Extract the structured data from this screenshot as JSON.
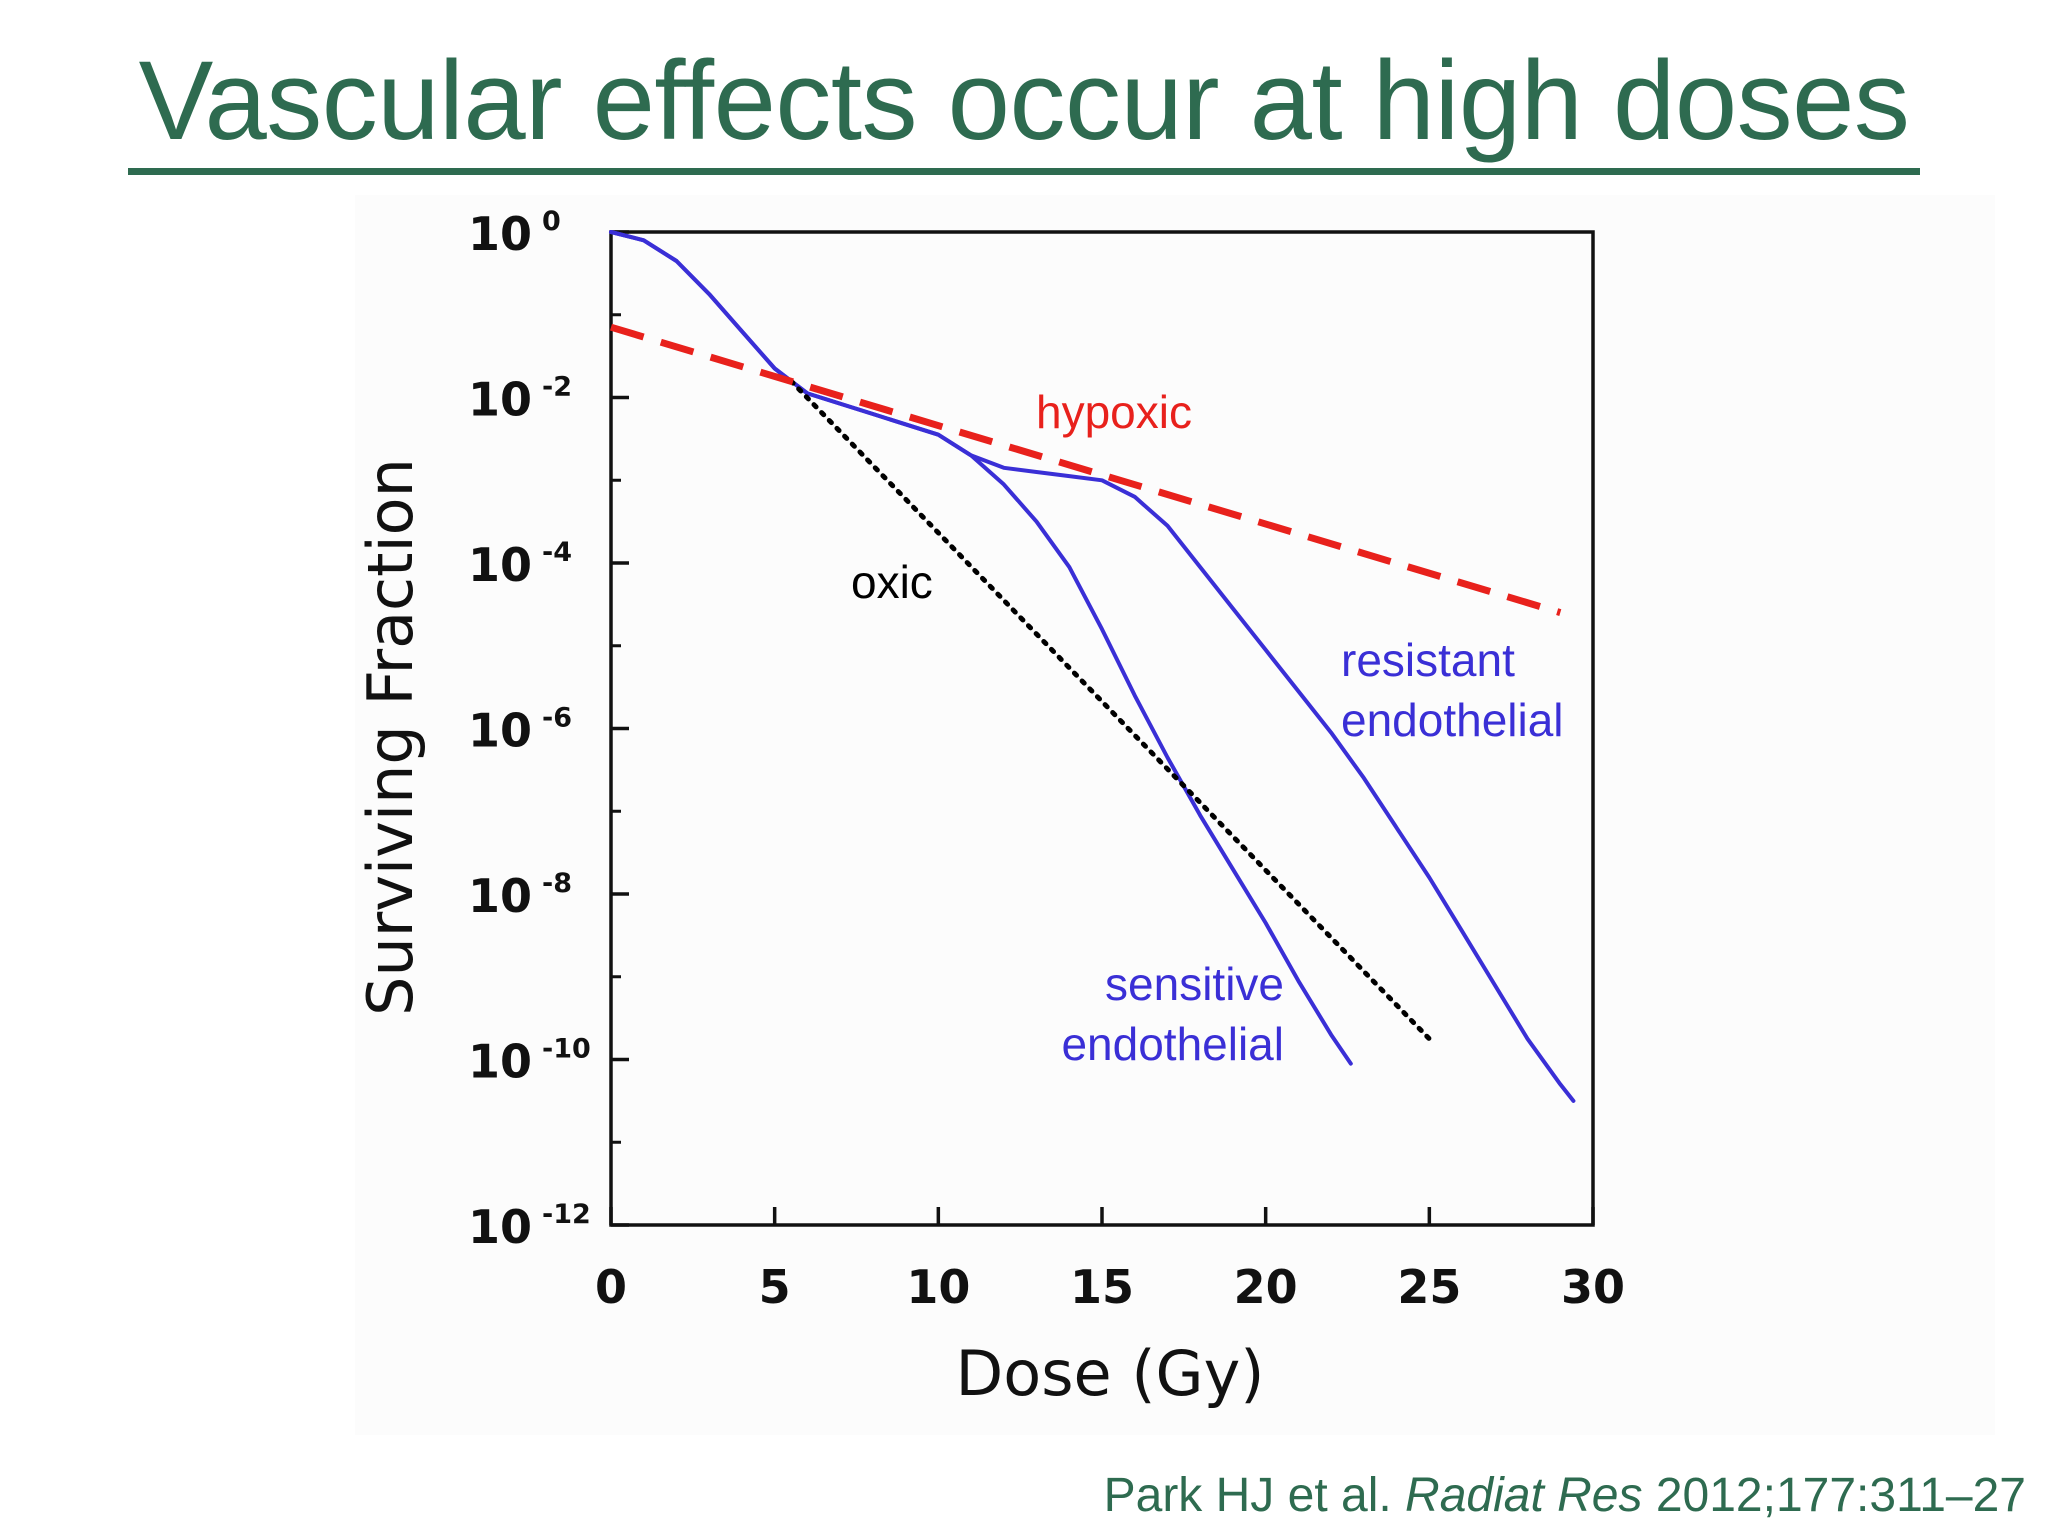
{
  "slide": {
    "title": "Vascular effects occur at high doses",
    "citation": {
      "authors": "Park HJ et al.",
      "journal": "Radiat Res",
      "details": "2012;177:311–27"
    }
  },
  "colors": {
    "title": "#2e6b50",
    "axis": "#111111",
    "endothelial": "#3a2fd6",
    "hypoxic": "#e8211c",
    "oxic": "#000000"
  },
  "chart_data": {
    "type": "line",
    "xlabel": "Dose (Gy)",
    "ylabel": "Surviving Fraction",
    "y_scale": "log",
    "xlim": [
      0,
      30
    ],
    "ylim": [
      1e-12,
      1
    ],
    "x_ticks": [
      "0",
      "5",
      "10",
      "15",
      "20",
      "25",
      "30"
    ],
    "y_ticks": [
      {
        "base": "10",
        "exp": "0",
        "value": 0
      },
      {
        "base": "10",
        "exp": "-2",
        "value": -2
      },
      {
        "base": "10",
        "exp": "-4",
        "value": -4
      },
      {
        "base": "10",
        "exp": "-6",
        "value": -6
      },
      {
        "base": "10",
        "exp": "-8",
        "value": -8
      },
      {
        "base": "10",
        "exp": "-10",
        "value": -10
      },
      {
        "base": "10",
        "exp": "-12",
        "value": -12
      }
    ],
    "grid": false,
    "series": [
      {
        "key": "sensitive",
        "label": [
          "sensitive",
          "endothelial"
        ],
        "style": "solid",
        "color": "#3a2fd6",
        "log10_points": [
          [
            0,
            0
          ],
          [
            1,
            -0.1
          ],
          [
            2,
            -0.35
          ],
          [
            3,
            -0.75
          ],
          [
            4,
            -1.2
          ],
          [
            5,
            -1.65
          ],
          [
            6,
            -1.95
          ],
          [
            8,
            -2.2
          ],
          [
            10,
            -2.45
          ],
          [
            11,
            -2.7
          ],
          [
            12,
            -3.05
          ],
          [
            13,
            -3.5
          ],
          [
            14,
            -4.05
          ],
          [
            15,
            -4.8
          ],
          [
            16,
            -5.6
          ],
          [
            17,
            -6.35
          ],
          [
            18,
            -7.05
          ],
          [
            19,
            -7.7
          ],
          [
            20,
            -8.35
          ],
          [
            21,
            -9.05
          ],
          [
            22,
            -9.7
          ],
          [
            22.6,
            -10.05
          ]
        ]
      },
      {
        "key": "resistant",
        "label": [
          "resistant",
          "endothelial"
        ],
        "style": "solid",
        "color": "#3a2fd6",
        "log10_points": [
          [
            0,
            0
          ],
          [
            1,
            -0.1
          ],
          [
            2,
            -0.35
          ],
          [
            3,
            -0.75
          ],
          [
            4,
            -1.2
          ],
          [
            5,
            -1.65
          ],
          [
            6,
            -1.95
          ],
          [
            8,
            -2.2
          ],
          [
            10,
            -2.45
          ],
          [
            11,
            -2.7
          ],
          [
            12,
            -2.85
          ],
          [
            13,
            -2.9
          ],
          [
            14,
            -2.95
          ],
          [
            15,
            -3.0
          ],
          [
            16,
            -3.2
          ],
          [
            17,
            -3.55
          ],
          [
            18,
            -4.05
          ],
          [
            19,
            -4.55
          ],
          [
            20,
            -5.05
          ],
          [
            21,
            -5.55
          ],
          [
            22,
            -6.05
          ],
          [
            23,
            -6.6
          ],
          [
            24,
            -7.2
          ],
          [
            25,
            -7.8
          ],
          [
            26,
            -8.45
          ],
          [
            27,
            -9.1
          ],
          [
            28,
            -9.75
          ],
          [
            29,
            -10.3
          ],
          [
            29.4,
            -10.5
          ]
        ]
      },
      {
        "key": "hypoxic",
        "label": [
          "hypoxic"
        ],
        "style": "dashed",
        "color": "#e8211c",
        "log10_points": [
          [
            0,
            -1.15
          ],
          [
            29,
            -4.6
          ]
        ]
      },
      {
        "key": "oxic",
        "label": [
          "oxic"
        ],
        "style": "dotted",
        "color": "#000000",
        "log10_points": [
          [
            5.5,
            -1.8
          ],
          [
            25,
            -9.75
          ]
        ]
      }
    ]
  }
}
